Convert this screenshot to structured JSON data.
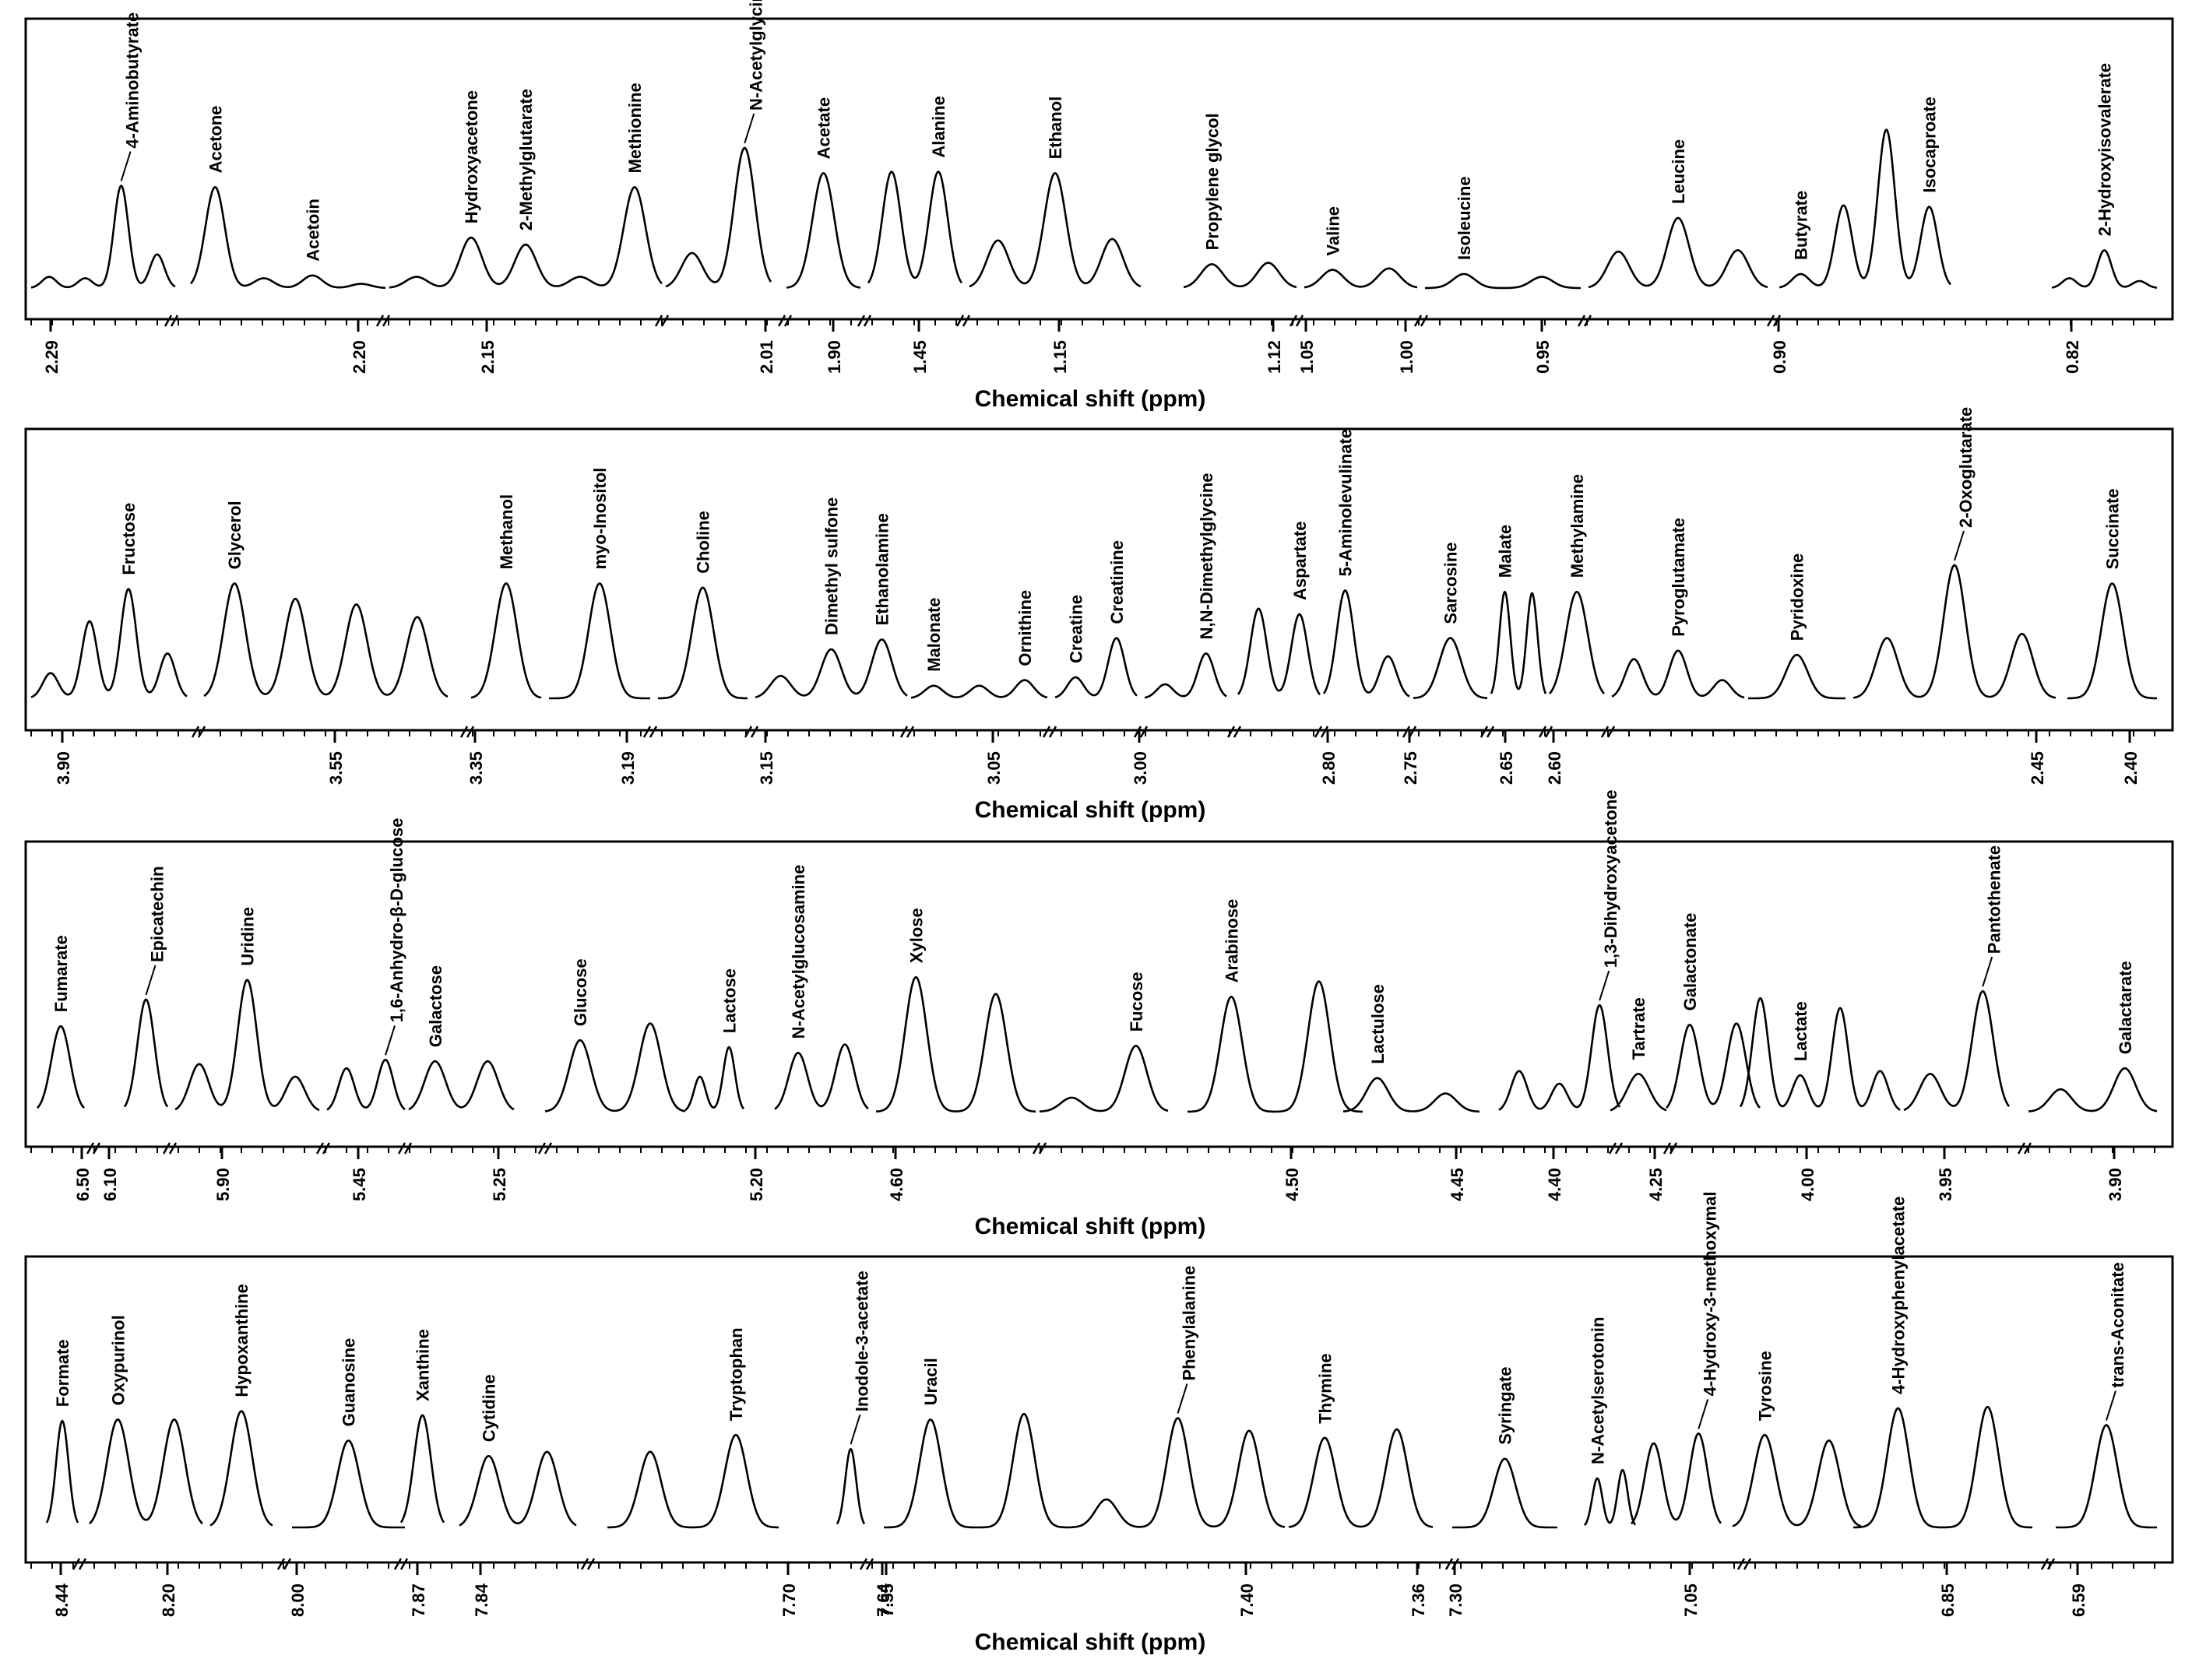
{
  "chart_data": [
    {
      "type": "line",
      "xlabel": "Chemical shift (ppm)",
      "tick_labels": [
        "2.29",
        "2.20",
        "2.15",
        "2.01",
        "1.90",
        "1.45",
        "1.15",
        "1.12",
        "1.05",
        "1.00",
        "0.95",
        "0.90",
        "0.82"
      ],
      "segments": [
        {
          "peaks": [
            {
              "h": 0.08
            },
            {
              "h": 0.07
            },
            {
              "h": 0.73,
              "label": "4-Aminobutyrate",
              "leader": true
            },
            {
              "h": 0.24
            }
          ]
        },
        {
          "peaks": [
            {
              "h": 0.72,
              "label": "Acetone"
            },
            {
              "h": 0.07
            },
            {
              "h": 0.09,
              "label": "Acetoin"
            },
            {
              "h": 0.03
            }
          ]
        },
        {
          "peaks": [
            {
              "h": 0.08
            },
            {
              "h": 0.36,
              "label": "Hydroxyacetone"
            },
            {
              "h": 0.31,
              "label": "2-Methylglutarate"
            },
            {
              "h": 0.08
            },
            {
              "h": 0.72,
              "label": "Methionine"
            }
          ]
        },
        {
          "peaks": [
            {
              "h": 0.25
            },
            {
              "h": 1.0,
              "label": "N-Acetylglycine",
              "leader": true
            }
          ]
        },
        {
          "peaks": [
            {
              "h": 0.82,
              "label": "Acetate"
            }
          ]
        },
        {
          "peaks": [
            {
              "h": 0.83
            },
            {
              "h": 0.83,
              "label": "Alanine"
            }
          ]
        },
        {
          "peaks": [
            {
              "h": 0.34
            },
            {
              "h": 0.82,
              "label": "Ethanol"
            },
            {
              "h": 0.35
            }
          ]
        },
        {
          "peaks": [
            {
              "h": 0.17,
              "label": "Propylene glycol"
            },
            {
              "h": 0.18
            }
          ]
        },
        {
          "peaks": [
            {
              "h": 0.13,
              "label": "Valine"
            },
            {
              "h": 0.14
            }
          ]
        },
        {
          "peaks": [
            {
              "h": 0.1,
              "label": "Isoleucine"
            },
            {
              "h": 0.08
            }
          ]
        },
        {
          "peaks": [
            {
              "h": 0.26
            },
            {
              "h": 0.5,
              "label": "Leucine"
            },
            {
              "h": 0.27
            }
          ]
        },
        {
          "peaks": [
            {
              "h": 0.1,
              "label": "Butyrate"
            },
            {
              "h": 0.59
            },
            {
              "h": 1.13
            },
            {
              "h": 0.58,
              "label": "Isocaproate"
            }
          ]
        },
        {
          "peaks": [
            {
              "h": 0.07
            },
            {
              "h": 0.27,
              "label": "2-Hydroxyisovalerate"
            },
            {
              "h": 0.05
            }
          ]
        }
      ]
    },
    {
      "type": "line",
      "xlabel": "Chemical shift (ppm)",
      "tick_labels": [
        "3.90",
        "3.55",
        "3.35",
        "3.19",
        "3.15",
        "3.05",
        "3.00",
        "2.80",
        "2.75",
        "2.65",
        "2.60",
        "2.45",
        "2.40"
      ],
      "segments": [
        {
          "peaks": [
            {
              "h": 0.18
            },
            {
              "h": 0.55
            },
            {
              "h": 0.78,
              "label": "Fructose"
            },
            {
              "h": 0.32
            }
          ]
        },
        {
          "peaks": [
            {
              "h": 0.82,
              "label": "Glycerol"
            },
            {
              "h": 0.71
            },
            {
              "h": 0.67
            },
            {
              "h": 0.58
            }
          ]
        },
        {
          "peaks": [
            {
              "h": 0.82,
              "label": "Methanol"
            }
          ]
        },
        {
          "peaks": [
            {
              "h": 0.82,
              "label": "myo-Inositol"
            }
          ]
        },
        {
          "peaks": [
            {
              "h": 0.79,
              "label": "Choline"
            }
          ]
        },
        {
          "peaks": [
            {
              "h": 0.16
            },
            {
              "h": 0.35,
              "label": "Dimethyl sulfone"
            },
            {
              "h": 0.42,
              "label": "Ethanolamine"
            }
          ]
        },
        {
          "peaks": [
            {
              "h": 0.09,
              "label": "Malonate"
            },
            {
              "h": 0.09
            },
            {
              "h": 0.13,
              "label": "Ornithine"
            }
          ]
        },
        {
          "peaks": [
            {
              "h": 0.15,
              "label": "Creatine"
            },
            {
              "h": 0.43,
              "label": "Creatinine"
            }
          ]
        },
        {
          "peaks": [
            {
              "h": 0.1
            },
            {
              "h": 0.32,
              "label": "N,N-Dimethylglycine"
            }
          ]
        },
        {
          "peaks": [
            {
              "h": 0.64
            },
            {
              "h": 0.6,
              "label": "Aspartate"
            }
          ]
        },
        {
          "peaks": [
            {
              "h": 0.77,
              "label": "5-Aminolevulinate"
            },
            {
              "h": 0.3
            }
          ]
        },
        {
          "peaks": [
            {
              "h": 0.43,
              "label": "Sarcosine"
            }
          ]
        },
        {
          "peaks": [
            {
              "h": 0.76,
              "label": "Malate"
            },
            {
              "h": 0.75
            }
          ]
        },
        {
          "peaks": [
            {
              "h": 0.76,
              "label": "Methylamine"
            }
          ]
        },
        {
          "peaks": [
            {
              "h": 0.28
            },
            {
              "h": 0.34,
              "label": "Pyroglutamate"
            },
            {
              "h": 0.13
            }
          ]
        },
        {
          "peaks": [
            {
              "h": 0.31,
              "label": "Pyridoxine"
            }
          ]
        },
        {
          "peaks": [
            {
              "h": 0.43
            },
            {
              "h": 0.95,
              "label": "2-Oxoglutarate",
              "leader": true
            },
            {
              "h": 0.46
            }
          ]
        },
        {
          "peaks": [
            {
              "h": 0.82,
              "label": "Succinate"
            }
          ]
        }
      ]
    },
    {
      "type": "line",
      "xlabel": "Chemical shift (ppm)",
      "tick_labels": [
        "6.50",
        "6.10",
        "5.90",
        "5.45",
        "5.25",
        "5.20",
        "4.60",
        "4.50",
        "4.45",
        "4.40",
        "4.25",
        "4.00",
        "3.95",
        "3.90"
      ],
      "segments": [
        {
          "peaks": [
            {
              "h": 0.61,
              "label": "Fumarate"
            }
          ]
        },
        {
          "peaks": [
            {
              "h": 0.8,
              "label": "Epicatechin",
              "leader": true
            }
          ]
        },
        {
          "peaks": [
            {
              "h": 0.34
            },
            {
              "h": 0.94,
              "label": "Uridine"
            },
            {
              "h": 0.25
            }
          ]
        },
        {
          "peaks": [
            {
              "h": 0.31
            },
            {
              "h": 0.37,
              "label": "1,6-Anhydro-β-D-glucose",
              "leader": true
            }
          ]
        },
        {
          "peaks": [
            {
              "h": 0.36,
              "label": "Galactose"
            },
            {
              "h": 0.36
            }
          ]
        },
        {
          "peaks": [
            {
              "h": 0.51,
              "label": "Glucose"
            },
            {
              "h": 0.63
            }
          ]
        },
        {
          "peaks": [
            {
              "h": 0.25
            },
            {
              "h": 0.46,
              "label": "Lactose"
            }
          ]
        },
        {
          "peaks": [
            {
              "h": 0.42,
              "label": "N-Acetylglucosamine"
            },
            {
              "h": 0.48
            }
          ]
        },
        {
          "peaks": [
            {
              "h": 0.96,
              "label": "Xylose"
            },
            {
              "h": 0.84
            }
          ]
        },
        {
          "peaks": [
            {
              "h": 0.1
            },
            {
              "h": 0.47,
              "label": "Fucose"
            }
          ]
        },
        {
          "peaks": [
            {
              "h": 0.82,
              "label": "Arabinose"
            },
            {
              "h": 0.93
            }
          ]
        },
        {
          "peaks": [
            {
              "h": 0.24,
              "label": "Lactulose"
            },
            {
              "h": 0.13
            }
          ]
        },
        {
          "peaks": [
            {
              "h": 0.29
            },
            {
              "h": 0.2
            },
            {
              "h": 0.76,
              "label": "1,3-Dihydroxyacetone",
              "leader": true
            }
          ]
        },
        {
          "peaks": [
            {
              "h": 0.27,
              "label": "Tartrate"
            }
          ]
        },
        {
          "peaks": [
            {
              "h": 0.62,
              "label": "Galactonate"
            },
            {
              "h": 0.63
            }
          ]
        },
        {
          "peaks": [
            {
              "h": 0.81
            },
            {
              "h": 0.26,
              "label": "Lactate"
            },
            {
              "h": 0.74
            },
            {
              "h": 0.29
            }
          ]
        },
        {
          "peaks": [
            {
              "h": 0.27
            },
            {
              "h": 0.86,
              "label": "Pantothenate",
              "leader": true
            }
          ]
        },
        {
          "peaks": [
            {
              "h": 0.16
            },
            {
              "h": 0.31,
              "label": "Galactarate"
            }
          ]
        }
      ]
    },
    {
      "type": "line",
      "xlabel": "Chemical shift (ppm)",
      "tick_labels": [
        "8.44",
        "8.20",
        "8.00",
        "7.87",
        "7.84",
        "7.70",
        "7.64",
        "7.55",
        "7.40",
        "7.36",
        "7.30",
        "7.05",
        "6.85",
        "6.59"
      ],
      "segments": [
        {
          "peaks": [
            {
              "h": 0.76,
              "label": "Formate"
            }
          ]
        },
        {
          "peaks": [
            {
              "h": 0.77,
              "label": "Oxypurinol"
            },
            {
              "h": 0.77
            }
          ]
        },
        {
          "peaks": [
            {
              "h": 0.83,
              "label": "Hypoxanthine"
            }
          ]
        },
        {
          "peaks": [
            {
              "h": 0.62,
              "label": "Guanosine"
            }
          ]
        },
        {
          "peaks": [
            {
              "h": 0.8,
              "label": "Xanthine"
            }
          ]
        },
        {
          "peaks": [
            {
              "h": 0.51,
              "label": "Cytidine"
            },
            {
              "h": 0.54
            }
          ]
        },
        {
          "peaks": [
            {
              "h": 0.54
            },
            {
              "h": 0.66,
              "label": "Tryptophan"
            }
          ]
        },
        {
          "peaks": [
            {
              "h": 0.56,
              "label": "Inodole-3-acetate",
              "leader": true
            }
          ]
        },
        {
          "peaks": [
            {
              "h": 0.77,
              "label": "Uracil"
            },
            {
              "h": 0.81
            }
          ]
        },
        {
          "peaks": [
            {
              "h": 0.2
            },
            {
              "h": 0.78,
              "label": "Phenylalanine",
              "leader": true
            },
            {
              "h": 0.69
            }
          ]
        },
        {
          "peaks": [
            {
              "h": 0.64,
              "label": "Thymine"
            },
            {
              "h": 0.7
            }
          ]
        },
        {
          "peaks": [
            {
              "h": 0.49,
              "label": "Syringate"
            }
          ]
        },
        {
          "peaks": [
            {
              "h": 0.35,
              "label": "N-Acetylserotonin"
            },
            {
              "h": 0.41
            }
          ]
        },
        {
          "peaks": [
            {
              "h": 0.6
            },
            {
              "h": 0.67,
              "label": "4-Hydroxy-3-methoxymal",
              "leader": true
            }
          ]
        },
        {
          "peaks": [
            {
              "h": 0.66,
              "label": "Tyrosine"
            },
            {
              "h": 0.62
            }
          ]
        },
        {
          "peaks": [
            {
              "h": 0.85,
              "label": "4-Hydroxyphenylacetate"
            },
            {
              "h": 0.86
            }
          ]
        },
        {
          "peaks": [
            {
              "h": 0.73,
              "label": "trans-Aconitate",
              "leader": true
            }
          ]
        }
      ]
    }
  ]
}
